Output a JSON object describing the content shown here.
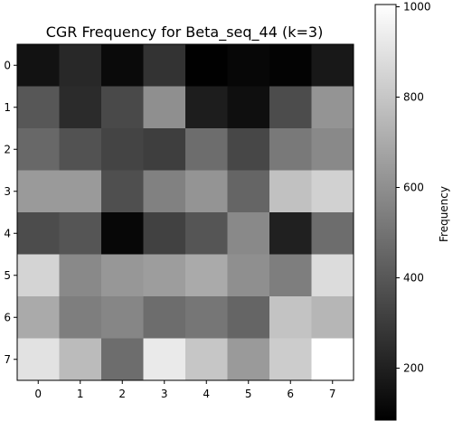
{
  "chart_data": {
    "type": "heatmap",
    "title": "CGR Frequency for Beta_seq_44 (k=3)",
    "x": [
      "0",
      "1",
      "2",
      "3",
      "4",
      "5",
      "6",
      "7"
    ],
    "y": [
      "0",
      "1",
      "2",
      "3",
      "4",
      "5",
      "6",
      "7"
    ],
    "values": [
      [
        150,
        230,
        120,
        270,
        90,
        110,
        95,
        170
      ],
      [
        400,
        240,
        350,
        600,
        190,
        140,
        360,
        620
      ],
      [
        460,
        380,
        330,
        310,
        480,
        340,
        520,
        580
      ],
      [
        640,
        640,
        370,
        550,
        620,
        450,
        780,
        840
      ],
      [
        360,
        390,
        110,
        320,
        390,
        580,
        200,
        480
      ],
      [
        850,
        580,
        630,
        650,
        700,
        600,
        540,
        880
      ],
      [
        700,
        540,
        570,
        480,
        510,
        450,
        790,
        740
      ],
      [
        900,
        760,
        480,
        930,
        800,
        640,
        820,
        1005
      ]
    ],
    "colormap": "gray",
    "colorbar": {
      "label": "Frequency",
      "range": [
        85,
        1005
      ],
      "ticks": [
        200,
        400,
        600,
        800,
        1000
      ]
    },
    "grid": false
  }
}
